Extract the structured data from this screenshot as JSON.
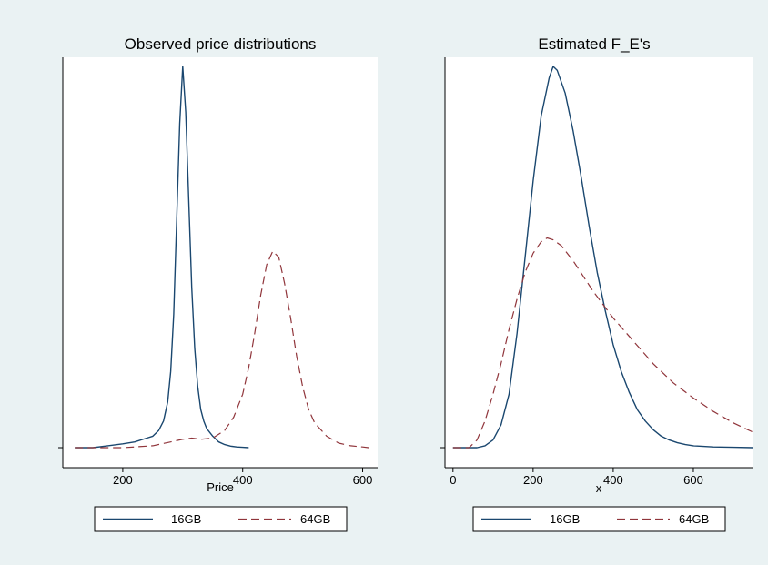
{
  "theme": {
    "background": "#eaf2f3",
    "plot_bg": "#ffffff",
    "color_16gb": "#1a476f",
    "color_64gb": "#90353b"
  },
  "chart_data": [
    {
      "type": "line",
      "title": "Observed price distributions",
      "xlabel": "Price",
      "ylabel": "",
      "xlim": [
        100,
        625
      ],
      "ylim": [
        0,
        1
      ],
      "xticks": [
        200,
        400,
        600
      ],
      "yticks": [
        0
      ],
      "ytick_labels": [
        ""
      ],
      "legend": {
        "position": "bottom",
        "entries": [
          "16GB",
          "64GB"
        ]
      },
      "series": [
        {
          "name": "16GB",
          "style": "solid",
          "x": [
            120,
            150,
            175,
            200,
            220,
            240,
            250,
            260,
            268,
            275,
            280,
            285,
            290,
            295,
            300,
            305,
            310,
            315,
            320,
            325,
            330,
            335,
            340,
            350,
            360,
            370,
            380,
            390,
            400,
            410
          ],
          "y": [
            0.0,
            0.0,
            0.005,
            0.01,
            0.015,
            0.025,
            0.03,
            0.045,
            0.07,
            0.12,
            0.2,
            0.35,
            0.6,
            0.85,
            1.0,
            0.88,
            0.65,
            0.42,
            0.26,
            0.16,
            0.1,
            0.07,
            0.05,
            0.03,
            0.015,
            0.008,
            0.004,
            0.002,
            0.001,
            0.0
          ]
        },
        {
          "name": "64GB",
          "style": "dashed",
          "x": [
            120,
            200,
            250,
            280,
            300,
            315,
            330,
            350,
            370,
            385,
            400,
            410,
            420,
            430,
            440,
            450,
            460,
            470,
            480,
            490,
            500,
            510,
            520,
            540,
            560,
            580,
            600,
            610
          ],
          "y": [
            0.0,
            0.0,
            0.005,
            0.015,
            0.022,
            0.025,
            0.022,
            0.025,
            0.045,
            0.08,
            0.14,
            0.21,
            0.3,
            0.4,
            0.48,
            0.515,
            0.5,
            0.43,
            0.34,
            0.24,
            0.16,
            0.1,
            0.065,
            0.03,
            0.012,
            0.005,
            0.002,
            0.0
          ]
        }
      ]
    },
    {
      "type": "line",
      "title": "Estimated F_E's",
      "xlabel": "x",
      "ylabel": "",
      "xlim": [
        -20,
        750
      ],
      "ylim": [
        0,
        1
      ],
      "xticks": [
        0,
        200,
        400,
        600
      ],
      "yticks": [
        0
      ],
      "ytick_labels": [
        ""
      ],
      "legend": {
        "position": "bottom",
        "entries": [
          "16GB",
          "64GB"
        ]
      },
      "series": [
        {
          "name": "16GB",
          "style": "solid",
          "x": [
            0,
            60,
            80,
            100,
            120,
            140,
            160,
            180,
            200,
            220,
            240,
            250,
            260,
            280,
            300,
            320,
            340,
            360,
            380,
            400,
            420,
            440,
            460,
            480,
            500,
            520,
            540,
            560,
            580,
            600,
            650,
            700,
            750
          ],
          "y": [
            0.0,
            0.0,
            0.005,
            0.02,
            0.06,
            0.14,
            0.3,
            0.5,
            0.7,
            0.87,
            0.97,
            1.0,
            0.99,
            0.93,
            0.83,
            0.71,
            0.58,
            0.46,
            0.36,
            0.27,
            0.2,
            0.145,
            0.1,
            0.07,
            0.047,
            0.03,
            0.02,
            0.013,
            0.008,
            0.005,
            0.002,
            0.001,
            0.0
          ]
        },
        {
          "name": "64GB",
          "style": "dashed",
          "x": [
            0,
            40,
            60,
            80,
            100,
            120,
            140,
            160,
            180,
            200,
            220,
            235,
            250,
            270,
            300,
            350,
            400,
            450,
            500,
            550,
            600,
            650,
            700,
            750
          ],
          "y": [
            0.0,
            0.0,
            0.02,
            0.07,
            0.14,
            0.22,
            0.31,
            0.39,
            0.46,
            0.51,
            0.54,
            0.55,
            0.545,
            0.53,
            0.49,
            0.41,
            0.34,
            0.28,
            0.22,
            0.17,
            0.13,
            0.095,
            0.065,
            0.04
          ]
        }
      ]
    }
  ]
}
